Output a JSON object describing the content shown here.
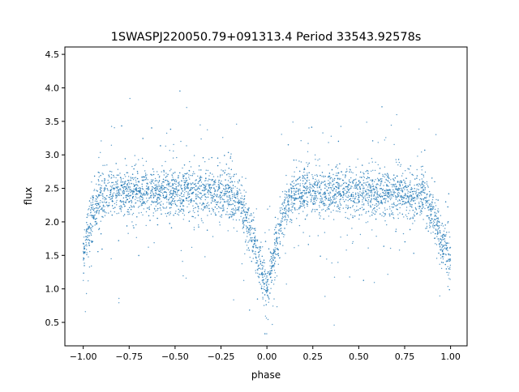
{
  "chart_data": {
    "type": "scatter",
    "title": "1SWASPJ220050.79+091313.4 Period 33543.92578s",
    "xlabel": "phase",
    "ylabel": "flux",
    "xlim": [
      -1.1,
      1.09
    ],
    "ylim": [
      0.15,
      4.61
    ],
    "xticks": [
      -1.0,
      -0.75,
      -0.5,
      -0.25,
      0.0,
      0.25,
      0.5,
      0.75,
      1.0
    ],
    "xtick_labels": [
      "−1.00",
      "−0.75",
      "−0.50",
      "−0.25",
      "0.00",
      "0.25",
      "0.50",
      "0.75",
      "1.00"
    ],
    "yticks": [
      0.5,
      1.0,
      1.5,
      2.0,
      2.5,
      3.0,
      3.5,
      4.0,
      4.5
    ],
    "ytick_labels": [
      "0.5",
      "1.0",
      "1.5",
      "2.0",
      "2.5",
      "3.0",
      "3.5",
      "4.0",
      "4.5"
    ],
    "grid": false,
    "marker_color": "#1f77b4",
    "median_curve": {
      "x": [
        -1.0,
        -0.97,
        -0.95,
        -0.92,
        -0.9,
        -0.85,
        -0.5,
        -0.2,
        -0.15,
        -0.1,
        -0.05,
        -0.02,
        0.0,
        0.02,
        0.05,
        0.1,
        0.15,
        0.2,
        0.5,
        0.85,
        0.9,
        0.93,
        0.95,
        0.98,
        1.0
      ],
      "y": [
        1.55,
        1.85,
        2.1,
        2.3,
        2.4,
        2.45,
        2.45,
        2.4,
        2.3,
        1.9,
        1.5,
        1.2,
        1.05,
        1.3,
        1.65,
        2.2,
        2.4,
        2.45,
        2.45,
        2.4,
        2.15,
        1.9,
        1.7,
        1.5,
        1.4
      ]
    }
  }
}
